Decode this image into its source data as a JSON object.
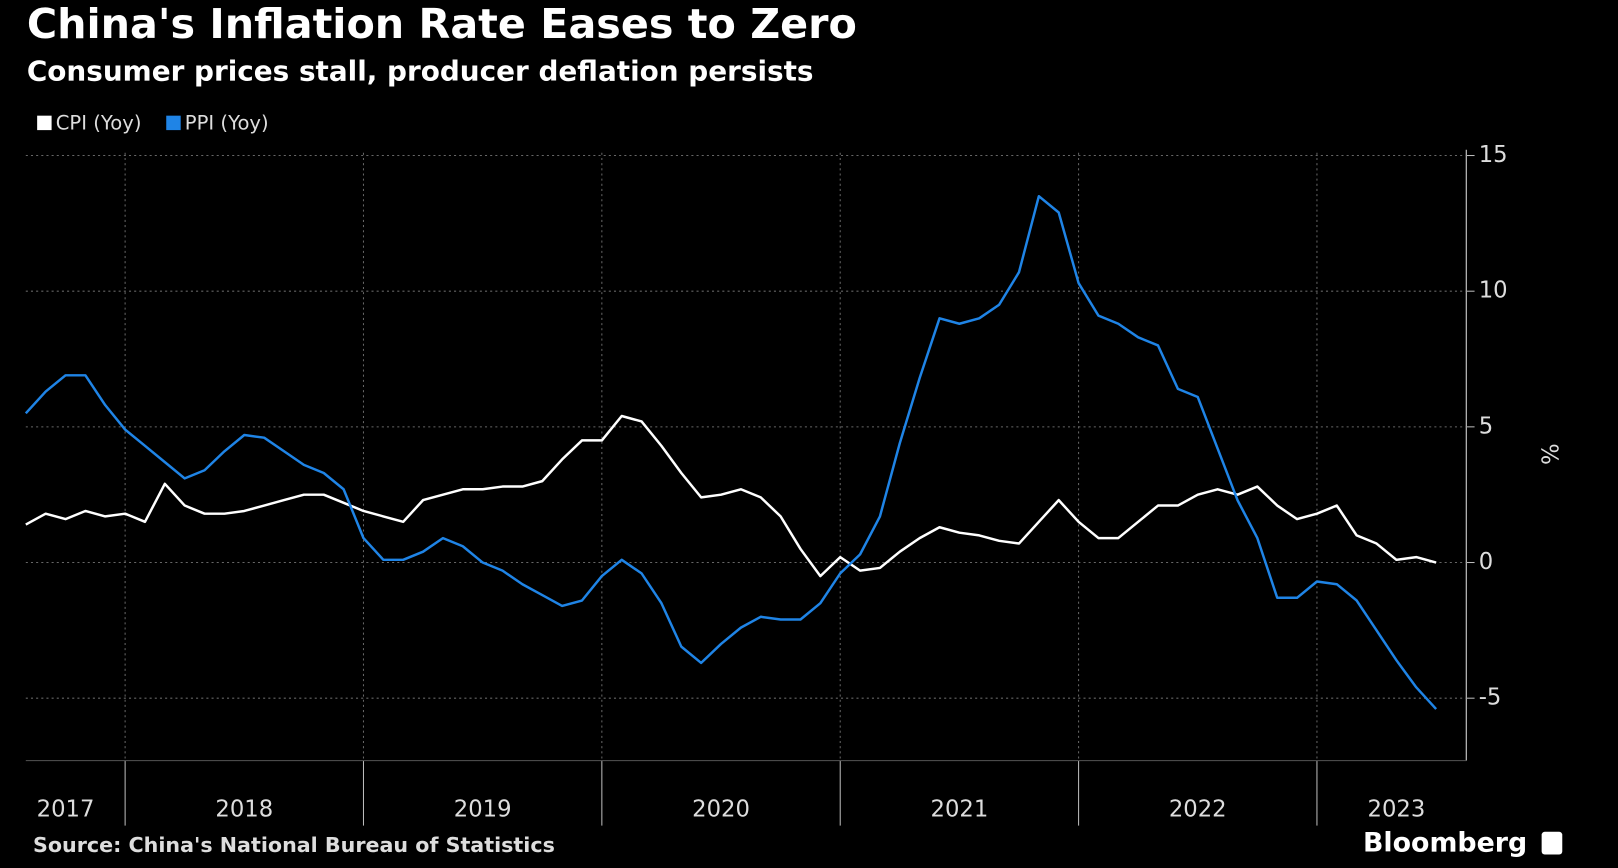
{
  "chart_data": {
    "type": "line",
    "title": "China's Inflation Rate Eases to Zero",
    "subtitle": "Consumer prices stall, producer deflation persists",
    "y_label": "%",
    "source": "Source: China's National Bureau of Statistics",
    "brand": "Bloomberg",
    "categories": [
      null,
      null,
      "2017",
      null,
      null,
      null,
      null,
      null,
      null,
      null,
      null,
      "2018",
      null,
      null,
      null,
      null,
      null,
      null,
      null,
      null,
      null,
      null,
      null,
      "2019",
      null,
      null,
      null,
      null,
      null,
      null,
      null,
      null,
      null,
      null,
      null,
      "2020",
      null,
      null,
      null,
      null,
      null,
      null,
      null,
      null,
      null,
      null,
      null,
      "2021",
      null,
      null,
      null,
      null,
      null,
      null,
      null,
      null,
      null,
      null,
      null,
      "2022",
      null,
      null,
      null,
      null,
      null,
      null,
      null,
      null,
      null,
      "2023",
      null,
      null
    ],
    "series": [
      {
        "name": "CPI (Yoy)",
        "color": "#ffffff",
        "values": [
          1.4,
          1.8,
          1.6,
          1.9,
          1.7,
          1.8,
          1.5,
          2.9,
          2.1,
          1.8,
          1.8,
          1.9,
          2.1,
          2.3,
          2.5,
          2.5,
          2.2,
          1.9,
          1.7,
          1.5,
          2.3,
          2.5,
          2.7,
          2.7,
          2.8,
          2.8,
          3.0,
          3.8,
          4.5,
          4.5,
          5.4,
          5.2,
          4.3,
          3.3,
          2.4,
          2.5,
          2.7,
          2.4,
          1.7,
          0.5,
          -0.5,
          0.2,
          -0.3,
          -0.2,
          0.4,
          0.9,
          1.3,
          1.1,
          1.0,
          0.8,
          0.7,
          1.5,
          2.3,
          1.5,
          0.9,
          0.9,
          1.5,
          2.1,
          2.1,
          2.5,
          2.7,
          2.5,
          2.8,
          2.1,
          1.6,
          1.8,
          2.1,
          1.0,
          0.7,
          0.1,
          0.2,
          0.0
        ]
      },
      {
        "name": "PPI (Yoy)",
        "color": "#1f84e6",
        "values": [
          5.5,
          6.3,
          6.9,
          6.9,
          5.8,
          4.9,
          4.3,
          3.7,
          3.1,
          3.4,
          4.1,
          4.7,
          4.6,
          4.1,
          3.6,
          3.3,
          2.7,
          0.9,
          0.1,
          0.1,
          0.4,
          0.9,
          0.6,
          0.0,
          -0.3,
          -0.8,
          -1.2,
          -1.6,
          -1.4,
          -0.5,
          0.1,
          -0.4,
          -1.5,
          -3.1,
          -3.7,
          -3.0,
          -2.4,
          -2.0,
          -2.1,
          -2.1,
          -1.5,
          -0.4,
          0.3,
          1.7,
          4.4,
          6.8,
          9.0,
          8.8,
          9.0,
          9.5,
          10.7,
          13.5,
          12.9,
          10.3,
          9.1,
          8.8,
          8.3,
          8.0,
          6.4,
          6.1,
          4.2,
          2.3,
          0.9,
          -1.3,
          -1.3,
          -0.7,
          -0.8,
          -1.4,
          -2.5,
          -3.6,
          -4.6,
          -5.4
        ]
      }
    ],
    "ylim": [
      -7.3,
      15.1
    ],
    "yticks": [
      -5,
      0,
      5,
      10,
      15
    ],
    "grid": true
  }
}
